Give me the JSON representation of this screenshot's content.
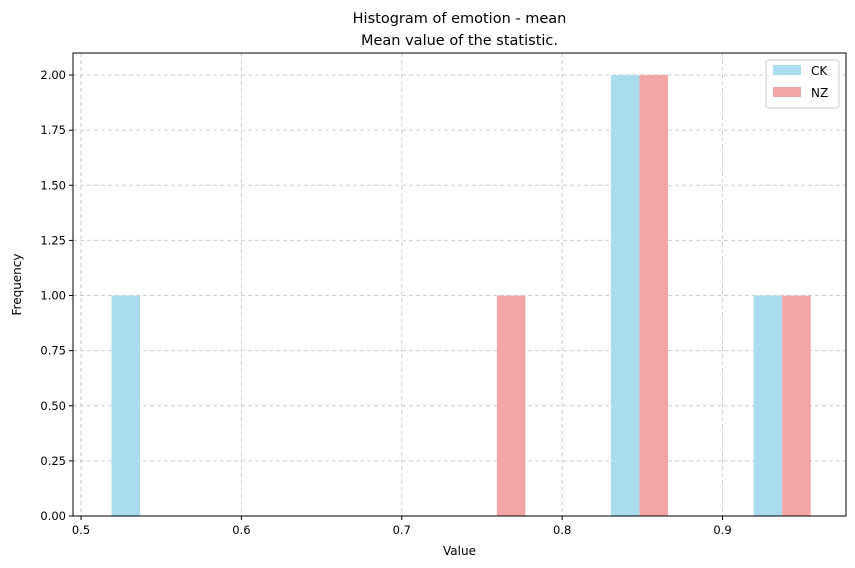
{
  "chart_data": {
    "type": "bar",
    "title": "Histogram of emotion - mean",
    "subtitle": "Mean value of the statistic.",
    "xlabel": "Value",
    "ylabel": "Frequency",
    "xlim": [
      0.495,
      0.977
    ],
    "ylim": [
      0,
      2.1
    ],
    "xticks": [
      0.5,
      0.6,
      0.7,
      0.8,
      0.9
    ],
    "xtick_labels": [
      "0.5",
      "0.6",
      "0.7",
      "0.8",
      "0.9"
    ],
    "yticks": [
      0,
      0.25,
      0.5,
      0.75,
      1.0,
      1.25,
      1.5,
      1.75,
      2.0
    ],
    "ytick_labels": [
      "0.00",
      "0.25",
      "0.50",
      "0.75",
      "1.00",
      "1.25",
      "1.50",
      "1.75",
      "2.00"
    ],
    "grid": true,
    "legend_position": "top-right",
    "series": [
      {
        "name": "CK",
        "color": "#a8dcee",
        "bars": [
          {
            "x0": 0.519,
            "x1": 0.5368,
            "value": 1
          },
          {
            "x0": 0.8304,
            "x1": 0.8482,
            "value": 2
          },
          {
            "x0": 0.9194,
            "x1": 0.9372,
            "value": 1
          }
        ]
      },
      {
        "name": "NZ",
        "color": "#f4a6a6",
        "bars": [
          {
            "x0": 0.7593,
            "x1": 0.7771,
            "value": 1
          },
          {
            "x0": 0.8482,
            "x1": 0.866,
            "value": 2
          },
          {
            "x0": 0.9372,
            "x1": 0.955,
            "value": 1
          }
        ]
      }
    ]
  }
}
